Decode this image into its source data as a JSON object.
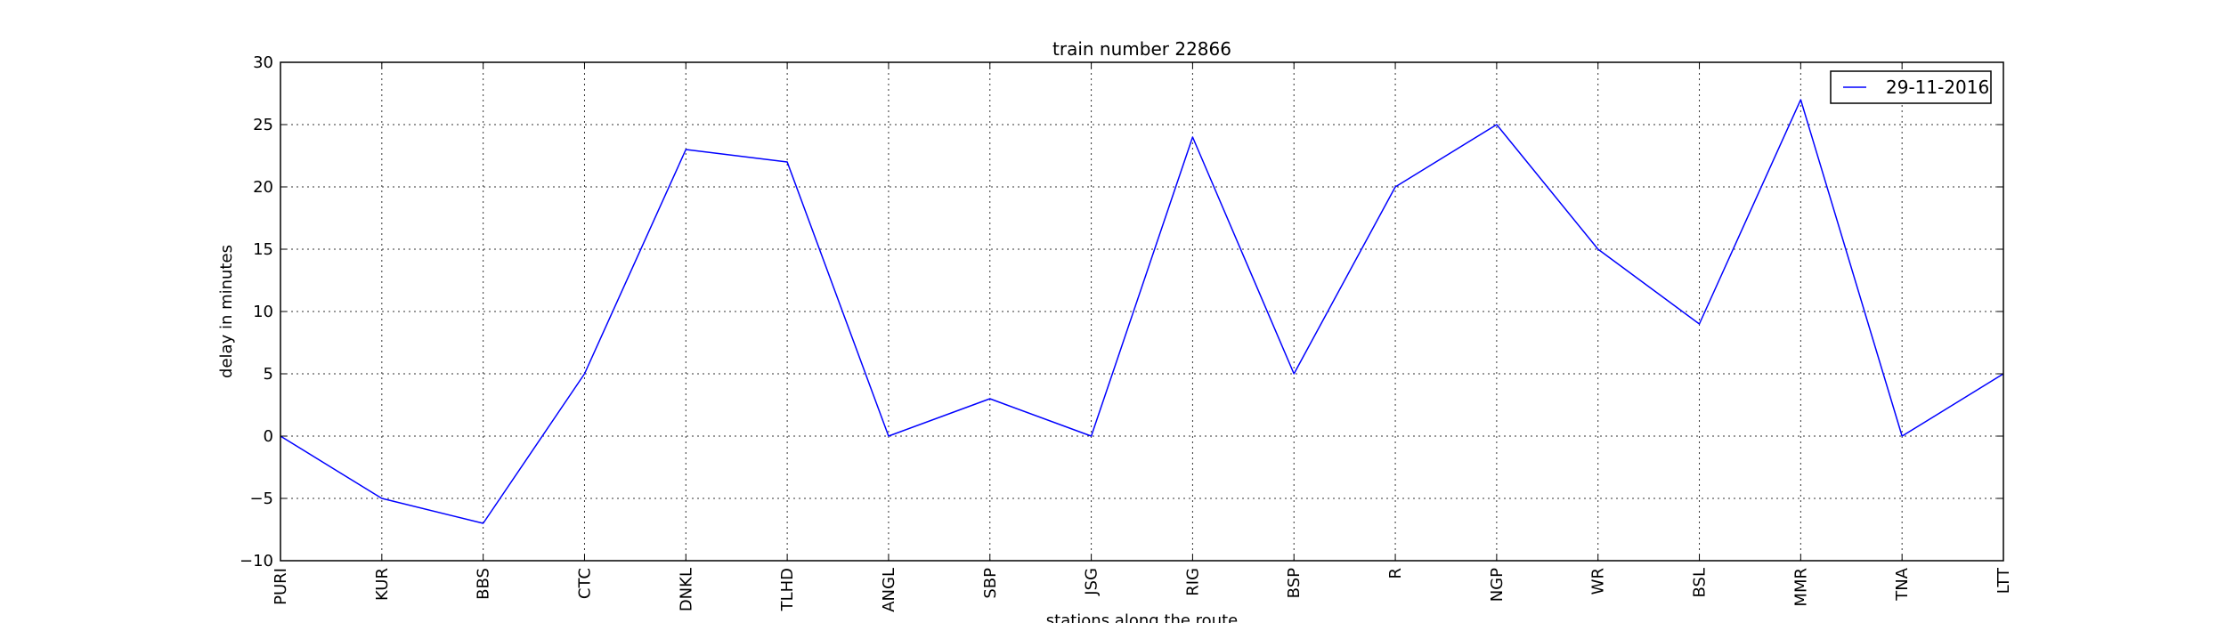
{
  "chart_data": {
    "type": "line",
    "title": "train number 22866",
    "xlabel": "stations along the route",
    "ylabel": "delay in minutes",
    "categories": [
      "PURI",
      "KUR",
      "BBS",
      "CTC",
      "DNKL",
      "TLHD",
      "ANGL",
      "SBP",
      "JSG",
      "RIG",
      "BSP",
      "R",
      "NGP",
      "WR",
      "BSL",
      "MMR",
      "TNA",
      "LTT"
    ],
    "series": [
      {
        "name": "29-11-2016",
        "color": "#0000ff",
        "values": [
          0,
          -5,
          -7,
          5,
          23,
          22,
          0,
          3,
          0,
          24,
          5,
          20,
          25,
          15,
          9,
          27,
          0,
          5
        ]
      }
    ],
    "ylim": [
      -10,
      30
    ],
    "yticks": [
      "−10",
      "−5",
      "0",
      "5",
      "10",
      "15",
      "20",
      "25",
      "30"
    ],
    "grid": true,
    "legend_position": "top-right"
  }
}
